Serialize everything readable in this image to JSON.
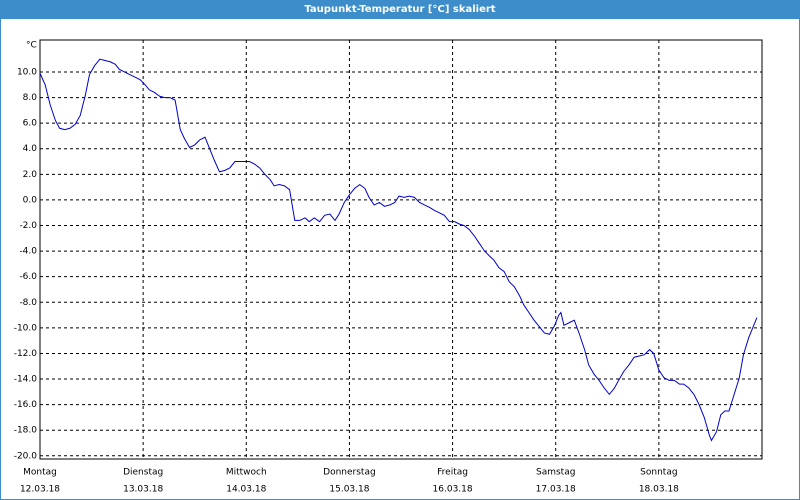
{
  "chart_data": {
    "type": "line",
    "title": "Taupunkt-Temperatur [°C] skaliert",
    "y_unit": "°C",
    "x": [
      0,
      0.05,
      0.1,
      0.15,
      0.19,
      0.24,
      0.29,
      0.34,
      0.39,
      0.44,
      0.48,
      0.53,
      0.58,
      0.63,
      0.68,
      0.73,
      0.77,
      0.82,
      0.87,
      0.92,
      0.97,
      1.02,
      1.06,
      1.11,
      1.16,
      1.21,
      1.26,
      1.31,
      1.36,
      1.4,
      1.45,
      1.5,
      1.55,
      1.6,
      1.65,
      1.69,
      1.74,
      1.79,
      1.84,
      1.89,
      1.94,
      1.98,
      2.03,
      2.08,
      2.13,
      2.18,
      2.23,
      2.27,
      2.32,
      2.37,
      2.42,
      2.47,
      2.52,
      2.57,
      2.61,
      2.66,
      2.71,
      2.76,
      2.81,
      2.86,
      2.9,
      2.95,
      3.0,
      3.05,
      3.1,
      3.15,
      3.19,
      3.24,
      3.29,
      3.34,
      3.39,
      3.44,
      3.48,
      3.53,
      3.58,
      3.63,
      3.68,
      3.73,
      3.78,
      3.82,
      3.87,
      3.92,
      3.97,
      4.02,
      4.07,
      4.11,
      4.16,
      4.21,
      4.26,
      4.31,
      4.36,
      4.4,
      4.45,
      4.5,
      4.55,
      4.6,
      4.65,
      4.69,
      4.74,
      4.79,
      4.84,
      4.89,
      4.94,
      4.99,
      5.03,
      5.05,
      5.08,
      5.13,
      5.18,
      5.23,
      5.28,
      5.32,
      5.37,
      5.42,
      5.47,
      5.52,
      5.57,
      5.61,
      5.66,
      5.71,
      5.76,
      5.81,
      5.86,
      5.91,
      5.95,
      6.0,
      6.05,
      6.1,
      6.15,
      6.2,
      6.24,
      6.29,
      6.34,
      6.39,
      6.44,
      6.49,
      6.51,
      6.56,
      6.6,
      6.64,
      6.68,
      6.73,
      6.78,
      6.82,
      6.87,
      6.92,
      6.95
    ],
    "series": [
      {
        "color": "#0000cc",
        "values": [
          9.9,
          9.0,
          7.4,
          6.2,
          5.6,
          5.5,
          5.6,
          5.9,
          6.6,
          8.2,
          9.8,
          10.5,
          11.0,
          10.9,
          10.8,
          10.6,
          10.2,
          10,
          9.8,
          9.6,
          9.4,
          9.0,
          8.6,
          8.4,
          8.1,
          8.0,
          8.0,
          7.8,
          5.5,
          4.8,
          4.1,
          4.3,
          4.7,
          4.9,
          3.9,
          3.1,
          2.2,
          2.3,
          2.5,
          3.0,
          3.0,
          3.0,
          3.0,
          2.8,
          2.5,
          2.0,
          1.6,
          1.1,
          1.2,
          1.1,
          0.8,
          -1.6,
          -1.6,
          -1.4,
          -1.7,
          -1.4,
          -1.7,
          -1.2,
          -1.1,
          -1.6,
          -1.1,
          -0.2,
          0.4,
          0.9,
          1.2,
          0.9,
          0.2,
          -0.4,
          -0.2,
          -0.5,
          -0.4,
          -0.2,
          0.3,
          0.2,
          0.3,
          0.2,
          -0.2,
          -0.4,
          -0.6,
          -0.8,
          -1.0,
          -1.2,
          -1.7,
          -1.7,
          -1.9,
          -2.0,
          -2.3,
          -2.8,
          -3.4,
          -4.0,
          -4.4,
          -4.7,
          -5.3,
          -5.6,
          -6.4,
          -6.8,
          -7.5,
          -8.2,
          -8.8,
          -9.4,
          -9.9,
          -10.4,
          -10.5,
          -9.8,
          -9.0,
          -8.8,
          -9.8,
          -9.6,
          -9.4,
          -10.5,
          -11.7,
          -12.9,
          -13.6,
          -14.1,
          -14.7,
          -15.2,
          -14.7,
          -14.1,
          -13.4,
          -12.9,
          -12.3,
          -12.2,
          -12.1,
          -11.7,
          -12.0,
          -13.3,
          -13.9,
          -14.1,
          -14.1,
          -14.4,
          -14.4,
          -14.7,
          -15.2,
          -16.0,
          -17.0,
          -18.4,
          -18.8,
          -18.1,
          -16.8,
          -16.5,
          -16.5,
          -15.2,
          -13.9,
          -12.1,
          -10.8,
          -9.8,
          -9.2
        ]
      }
    ],
    "xlim": [
      0,
      7
    ],
    "xticks": [
      {
        "value": 0,
        "label": "Montag"
      },
      {
        "value": 1,
        "label": "Dienstag"
      },
      {
        "value": 2,
        "label": "Mittwoch"
      },
      {
        "value": 3,
        "label": "Donnerstag"
      },
      {
        "value": 4,
        "label": "Freitag"
      },
      {
        "value": 5,
        "label": "Samstag"
      },
      {
        "value": 6,
        "label": "Sonntag"
      }
    ],
    "xtick_dates": [
      "12.03.18",
      "13.03.18",
      "14.03.18",
      "15.03.18",
      "16.03.18",
      "17.03.18",
      "18.03.18"
    ],
    "ylim": [
      -20.25,
      12.5
    ],
    "yticks": [
      {
        "value": 10,
        "label": "10.0"
      },
      {
        "value": 8,
        "label": "8.0"
      },
      {
        "value": 6,
        "label": "6.0"
      },
      {
        "value": 4,
        "label": "4.0"
      },
      {
        "value": 2,
        "label": "2.0"
      },
      {
        "value": 0,
        "label": "0.0"
      },
      {
        "value": -2,
        "label": "-2.0"
      },
      {
        "value": -4,
        "label": "-4.0"
      },
      {
        "value": -6,
        "label": "-6.0"
      },
      {
        "value": -8,
        "label": "-8.0"
      },
      {
        "value": -10,
        "label": "-10.0"
      },
      {
        "value": -12,
        "label": "-12.0"
      },
      {
        "value": -14,
        "label": "-14.0"
      },
      {
        "value": -16,
        "label": "-16.0"
      },
      {
        "value": -18,
        "label": "-18.0"
      },
      {
        "value": -20,
        "label": "-20.0"
      }
    ],
    "grid": true
  }
}
